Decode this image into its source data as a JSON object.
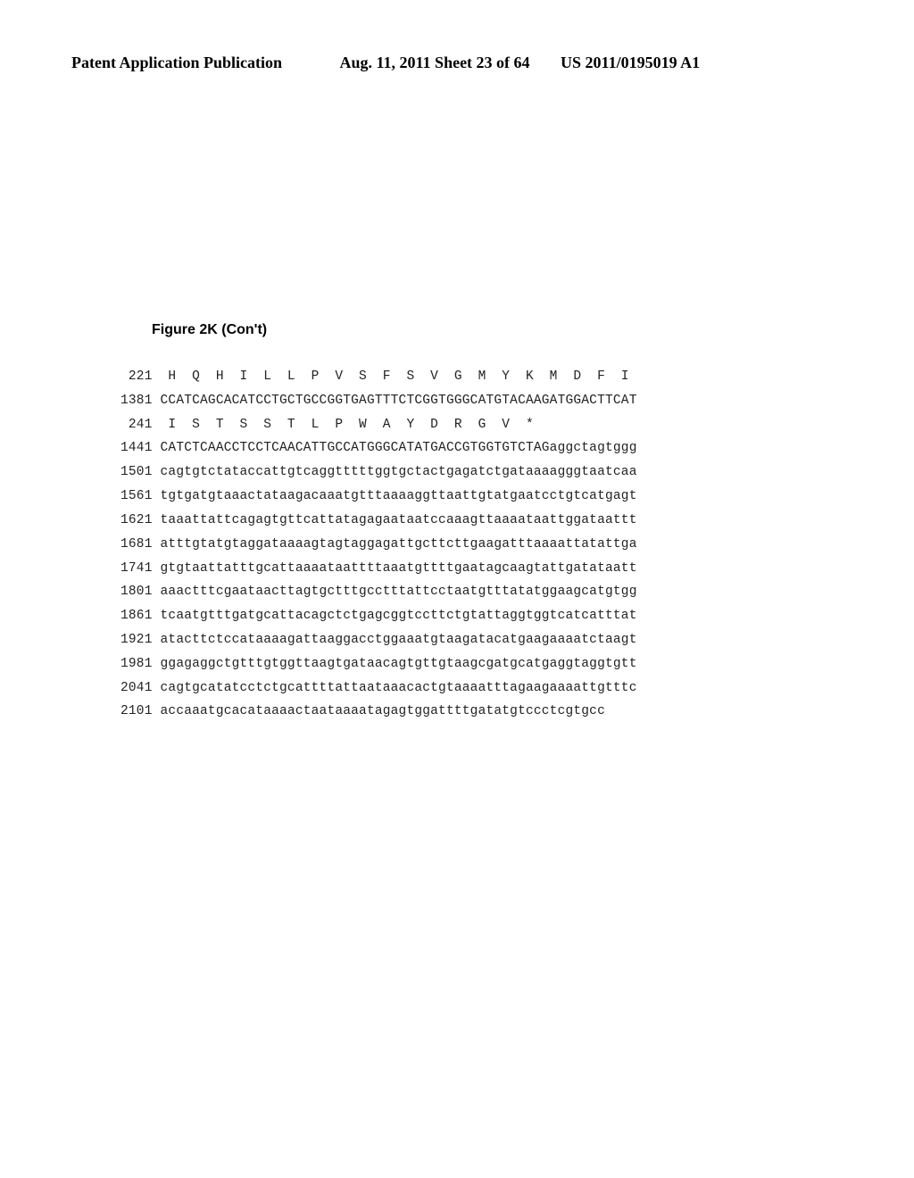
{
  "header": {
    "left": "Patent Application Publication",
    "center": "Aug. 11, 2011  Sheet 23 of 64",
    "right": "US 2011/0195019 A1"
  },
  "figure": {
    "label": "Figure 2K (Con't)"
  },
  "sequence": {
    "rows": [
      {
        "pos": " 221",
        "text": "  H  Q  H  I  L  L  P  V  S  F  S  V  G  M  Y  K  M  D  F  I"
      },
      {
        "pos": "1381",
        "text": " CCATCAGCACATCCTGCTGCCGGTGAGTTTCTCGGTGGGCATGTACAAGATGGACTTCAT"
      },
      {
        "pos": " 241",
        "text": "  I  S  T  S  S  T  L  P  W  A  Y  D  R  G  V  *"
      },
      {
        "pos": "1441",
        "text": " CATCTCAACCTCCTCAACATTGCCATGGGCATATGACCGTGGTGTCTAGaggctagtggg"
      },
      {
        "pos": "1501",
        "text": " cagtgtctataccattgtcaggtttttggtgctactgagatctgataaaagggtaatcaa"
      },
      {
        "pos": "1561",
        "text": " tgtgatgtaaactataagacaaatgtttaaaaggttaattgtatgaatcctgtcatgagt"
      },
      {
        "pos": "1621",
        "text": " taaattattcagagtgttcattatagagaataatccaaagttaaaataattggataattt"
      },
      {
        "pos": "1681",
        "text": " atttgtatgtaggataaaagtagtaggagattgcttcttgaagatttaaaattatattga"
      },
      {
        "pos": "1741",
        "text": " gtgtaattatttgcattaaaataattttaaatgttttgaatagcaagtattgatataatt"
      },
      {
        "pos": "1801",
        "text": " aaactttcgaataacttagtgctttgcctttattcctaatgtttatatggaagcatgtgg"
      },
      {
        "pos": "1861",
        "text": " tcaatgtttgatgcattacagctctgagcggtccttctgtattaggtggtcatcatttat"
      },
      {
        "pos": "1921",
        "text": " atacttctccataaaagattaaggacctggaaatgtaagatacatgaagaaaatctaagt"
      },
      {
        "pos": "1981",
        "text": " ggagaggctgtttgtggttaagtgataacagtgttgtaagcgatgcatgaggtaggtgtt"
      },
      {
        "pos": "2041",
        "text": " cagtgcatatcctctgcattttattaataaacactgtaaaatttagaagaaaattgtttc"
      },
      {
        "pos": "2101",
        "text": " accaaatgcacataaaactaataaaatagagtggattttgatatgtccctcgtgcc"
      }
    ]
  },
  "style": {
    "background_color": "#ffffff",
    "text_color": "#000000",
    "header_fontsize": 18,
    "figure_fontsize": 16,
    "seq_fontsize": 14.5,
    "seq_line_height": 1.85,
    "seq_font": "Courier New"
  }
}
